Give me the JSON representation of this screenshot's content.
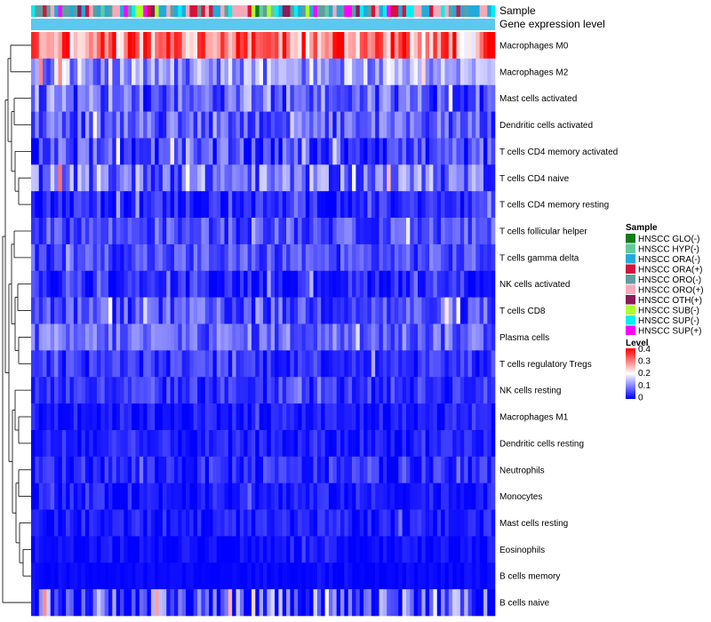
{
  "chart_data": {
    "type": "heatmap",
    "title": "",
    "annotation_tracks": [
      "Sample",
      "Gene expression level"
    ],
    "columns": 120,
    "rows": [
      "Macrophages M0",
      "Macrophages M2",
      "Mast cells activated",
      "Dendritic cells activated",
      "T cells CD4 memory activated",
      "T cells CD4 naive",
      "T cells CD4 memory resting",
      "T cells follicular helper",
      "T cells gamma delta",
      "NK cells activated",
      "T cells CD8",
      "Plasma cells",
      "T cells regulatory  Tregs",
      "NK cells resting",
      "Macrophages M1",
      "Dendritic cells resting",
      "Neutrophils",
      "Monocytes",
      "Mast cells resting",
      "Eosinophils",
      "B cells memory",
      "B cells naive"
    ],
    "row_mean_levels": [
      0.3,
      0.12,
      0.08,
      0.07,
      0.05,
      0.09,
      0.03,
      0.06,
      0.06,
      0.03,
      0.06,
      0.08,
      0.04,
      0.04,
      0.02,
      0.02,
      0.03,
      0.02,
      0.02,
      0.01,
      0.005,
      0.05
    ],
    "row_spread": [
      0.12,
      0.08,
      0.08,
      0.06,
      0.07,
      0.08,
      0.04,
      0.05,
      0.05,
      0.04,
      0.06,
      0.06,
      0.04,
      0.04,
      0.03,
      0.03,
      0.04,
      0.03,
      0.03,
      0.02,
      0.01,
      0.12
    ],
    "legend_sample": {
      "title": "Sample",
      "entries": [
        {
          "label": "HNSCC GLO(-)",
          "color": "#117c1c"
        },
        {
          "label": "HNSCC HYP(-)",
          "color": "#66c99a"
        },
        {
          "label": "HNSCC ORA(-)",
          "color": "#22aadd"
        },
        {
          "label": "HNSCC ORA(+)",
          "color": "#d4143c"
        },
        {
          "label": "HNSCC ORO(-)",
          "color": "#5f9ea0"
        },
        {
          "label": "HNSCC ORO(+)",
          "color": "#f4aab9"
        },
        {
          "label": "HNSCC OTH(+)",
          "color": "#8b1a5a"
        },
        {
          "label": "HNSCC SUB(-)",
          "color": "#adff2f"
        },
        {
          "label": "HNSCC SUP(-)",
          "color": "#00f0f0"
        },
        {
          "label": "HNSCC SUP(+)",
          "color": "#ff00ff"
        }
      ]
    },
    "legend_level": {
      "title": "Level",
      "min": 0,
      "max": 0.4,
      "ticks": [
        "0.4",
        "0.3",
        "0.2",
        "0.1",
        "0"
      ],
      "colors": {
        "low": "#0000ff",
        "mid": "#ffffff",
        "high": "#ff0000"
      },
      "midpoint": 0.2
    },
    "expression_track_color": "#5bc8f0",
    "dendrogram": "row clustering (hierarchical)"
  }
}
